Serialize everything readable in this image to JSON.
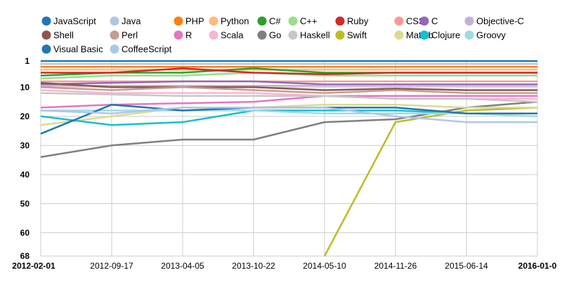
{
  "chart_data": {
    "type": "line",
    "title": "",
    "xlabel": "",
    "ylabel": "",
    "y_reversed": true,
    "ylim": [
      1,
      68
    ],
    "y_ticks": [
      1,
      10,
      20,
      30,
      40,
      50,
      60,
      68
    ],
    "x_ticks": [
      "2012-02-01",
      "2012-09-17",
      "2013-04-05",
      "2013-10-22",
      "2014-05-10",
      "2014-11-26",
      "2015-06-14",
      "2016-01-0"
    ],
    "x_ticks_bold": [
      "2012-02-01",
      "2016-01-0"
    ],
    "x_positions": [
      0,
      1,
      2,
      3,
      4,
      5,
      6,
      7
    ],
    "legend_position": "top",
    "grid": true,
    "series": [
      {
        "name": "JavaScript",
        "color": "#1f77b4",
        "values": [
          1,
          1,
          1,
          1,
          1,
          1,
          1,
          1
        ]
      },
      {
        "name": "Java",
        "color": "#aec7e8",
        "values": [
          2,
          2,
          2,
          2,
          2,
          2,
          2,
          2
        ]
      },
      {
        "name": "PHP",
        "color": "#ff7f0e",
        "values": [
          3,
          3,
          3,
          3,
          3,
          3,
          3,
          3
        ]
      },
      {
        "name": "Python",
        "color": "#ffbb78",
        "values": [
          4,
          4,
          4,
          4,
          4,
          4,
          4,
          4
        ]
      },
      {
        "name": "C#",
        "color": "#2ca02c",
        "values": [
          6,
          5,
          5,
          3.5,
          5,
          5,
          5,
          5
        ]
      },
      {
        "name": "C++",
        "color": "#98df8a",
        "values": [
          7,
          6,
          6,
          5,
          6,
          6,
          6,
          6
        ]
      },
      {
        "name": "Ruby",
        "color": "#d62728",
        "values": [
          5,
          5,
          3.5,
          5,
          5.5,
          5,
          5,
          5
        ]
      },
      {
        "name": "CSS",
        "color": "#ff9896",
        "values": [
          8,
          8,
          8,
          8,
          8,
          8,
          8,
          8
        ]
      },
      {
        "name": "C",
        "color": "#9467bd",
        "values": [
          9,
          8.5,
          8,
          8,
          9,
          9,
          9,
          9
        ]
      },
      {
        "name": "Objective-C",
        "color": "#c5b0d5",
        "values": [
          9.5,
          9.5,
          9.5,
          9.5,
          9.5,
          9.5,
          9.5,
          9.5
        ]
      },
      {
        "name": "Shell",
        "color": "#8c564b",
        "values": [
          8.5,
          10,
          10,
          10,
          11,
          10.5,
          11,
          11
        ]
      },
      {
        "name": "Perl",
        "color": "#c49c94",
        "values": [
          10,
          11,
          10,
          11,
          12,
          11,
          12,
          12
        ]
      },
      {
        "name": "R",
        "color": "#e377c2",
        "values": [
          17,
          16,
          15.5,
          15,
          13,
          13,
          13,
          13
        ]
      },
      {
        "name": "Scala",
        "color": "#f7b6d2",
        "values": [
          11,
          12,
          12,
          12,
          13,
          14,
          14,
          14
        ]
      },
      {
        "name": "Go",
        "color": "#7f7f7f",
        "values": [
          34,
          30,
          28,
          28,
          22,
          21,
          17,
          15
        ]
      },
      {
        "name": "Haskell",
        "color": "#c7c7c7",
        "values": [
          12,
          12.5,
          13,
          13,
          13,
          14,
          14,
          15
        ]
      },
      {
        "name": "Swift",
        "color": "#bcbd22",
        "values": [
          null,
          null,
          null,
          null,
          68,
          22,
          18,
          17
        ]
      },
      {
        "name": "Matlab",
        "color": "#dbdb8d",
        "values": [
          23,
          20,
          17,
          17,
          16,
          16,
          17,
          17
        ]
      },
      {
        "name": "Clojure",
        "color": "#17becf",
        "values": [
          20,
          23,
          22,
          18,
          18,
          18,
          19,
          19
        ]
      },
      {
        "name": "Groovy",
        "color": "#9edae5",
        "values": [
          18,
          18,
          18,
          18,
          19,
          19,
          19,
          20
        ]
      },
      {
        "name": "Visual Basic",
        "color": "#1f77b4",
        "values": [
          26,
          16,
          18,
          17,
          17,
          17,
          19,
          19
        ]
      },
      {
        "name": "CoffeeScript",
        "color": "#aec7e8",
        "values": [
          18,
          19,
          17,
          17,
          17,
          20,
          22,
          22
        ]
      }
    ]
  }
}
